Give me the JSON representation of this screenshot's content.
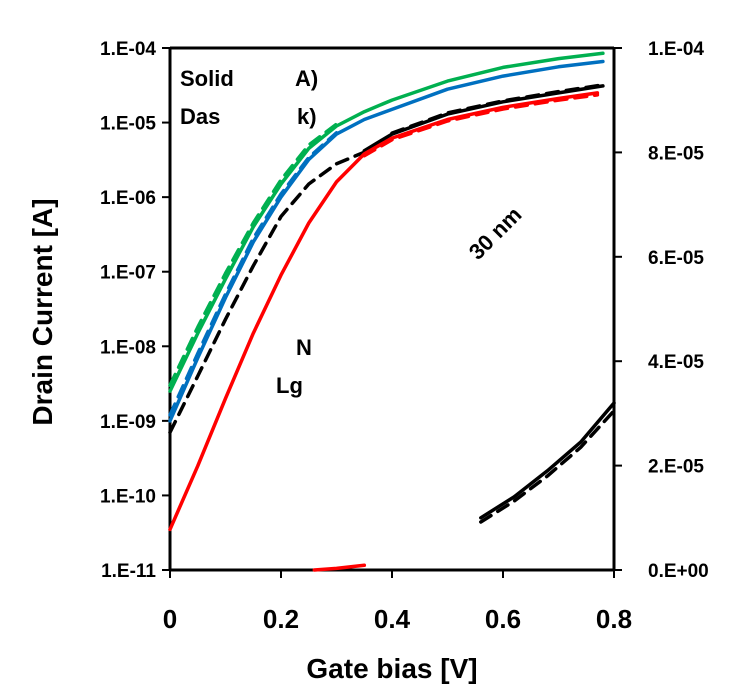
{
  "chart_data": {
    "type": "line",
    "title": "",
    "xlabel": "Gate bias [V]",
    "ylabel": "Drain Current [A]",
    "xlim": [
      0,
      0.8
    ],
    "ylim_left_log": [
      1e-11,
      0.0001
    ],
    "ylim_right": [
      0,
      0.0001
    ],
    "x_ticks": [
      "0",
      "0.2",
      "0.4",
      "0.6",
      "0.8"
    ],
    "y_ticks_left": [
      "1.E-11",
      "1.E-10",
      "1.E-09",
      "1.E-08",
      "1.E-07",
      "1.E-06",
      "1.E-05",
      "1.E-04"
    ],
    "y_ticks_right": [
      "0.E+00",
      "2.E-05",
      "4.E-05",
      "6.E-05",
      "8.E-05",
      "1.E-04"
    ],
    "grid": false,
    "annotations": {
      "solid": "Solid",
      "dash": "Das",
      "solid_tail": "A)",
      "dash_tail": "k)",
      "nw": "N",
      "lg": "Lg",
      "len30": "30 nm"
    },
    "series": [
      {
        "color": "#00b050",
        "style": "solid",
        "axis": "left-log",
        "x": [
          0,
          0.05,
          0.1,
          0.15,
          0.2,
          0.25,
          0.3,
          0.35,
          0.4,
          0.5,
          0.6,
          0.7,
          0.78
        ],
        "y": [
          2.5e-09,
          1.5e-08,
          8e-08,
          4e-07,
          1.5e-06,
          4.5e-06,
          9e-06,
          1.4e-05,
          2e-05,
          3.6e-05,
          5.5e-05,
          7.2e-05,
          8.5e-05
        ]
      },
      {
        "color": "#00b050",
        "style": "dash",
        "axis": "left-log",
        "x": [
          0,
          0.05,
          0.1,
          0.15,
          0.2,
          0.25,
          0.3
        ],
        "y": [
          3e-09,
          1.8e-08,
          9.5e-08,
          4.5e-07,
          1.7e-06,
          5e-06,
          9.5e-06
        ]
      },
      {
        "color": "#0070c0",
        "style": "solid",
        "axis": "left-log",
        "x": [
          0,
          0.05,
          0.1,
          0.15,
          0.2,
          0.25,
          0.3,
          0.35,
          0.4,
          0.5,
          0.6,
          0.7,
          0.78
        ],
        "y": [
          1e-09,
          7e-09,
          4.5e-08,
          2.5e-07,
          1e-06,
          3.2e-06,
          7e-06,
          1.1e-05,
          1.5e-05,
          2.8e-05,
          4.2e-05,
          5.6e-05,
          6.6e-05
        ]
      },
      {
        "color": "#0070c0",
        "style": "dash",
        "axis": "left-log",
        "x": [
          0,
          0.05,
          0.1,
          0.15,
          0.2,
          0.25,
          0.3
        ],
        "y": [
          1.2e-09,
          8e-09,
          5e-08,
          2.8e-07,
          1.1e-06,
          3.4e-06,
          7.3e-06
        ]
      },
      {
        "color": "#000000",
        "style": "dash",
        "axis": "left-log",
        "x": [
          0,
          0.05,
          0.1,
          0.15,
          0.2,
          0.25,
          0.3,
          0.35
        ],
        "y": [
          7e-10,
          4e-09,
          2.3e-08,
          1.2e-07,
          5.5e-07,
          1.5e-06,
          2.8e-06,
          4e-06
        ]
      },
      {
        "color": "#000000",
        "style": "solid",
        "axis": "left-log",
        "x": [
          0.35,
          0.4,
          0.5,
          0.6,
          0.7,
          0.78
        ],
        "y": [
          4.2e-06,
          7e-06,
          1.3e-05,
          1.9e-05,
          2.5e-05,
          3.1e-05
        ]
      },
      {
        "color": "#000000",
        "style": "dash",
        "axis": "left-log",
        "x": [
          0.4,
          0.5,
          0.6,
          0.7,
          0.78
        ],
        "y": [
          7.2e-06,
          1.35e-05,
          1.95e-05,
          2.6e-05,
          3.2e-05
        ]
      },
      {
        "color": "#ff0000",
        "style": "solid",
        "axis": "left-log",
        "x": [
          0,
          0.05,
          0.1,
          0.15,
          0.2,
          0.25,
          0.3,
          0.35,
          0.4,
          0.5,
          0.6,
          0.7,
          0.77
        ],
        "y": [
          3.5e-11,
          2.5e-10,
          2e-09,
          1.5e-08,
          9e-08,
          4.5e-07,
          1.6e-06,
          3.8e-06,
          6.2e-06,
          1.1e-05,
          1.6e-05,
          2.1e-05,
          2.5e-05
        ]
      },
      {
        "color": "#ff0000",
        "style": "dash",
        "axis": "left-log",
        "x": [
          0.35,
          0.4,
          0.5,
          0.6,
          0.7,
          0.77
        ],
        "y": [
          3.6e-06,
          5.9e-06,
          1.05e-05,
          1.52e-05,
          2e-05,
          2.35e-05
        ]
      },
      {
        "color": "#000000",
        "style": "solid",
        "axis": "right-linear",
        "x": [
          0.56,
          0.62,
          0.68,
          0.74,
          0.8
        ],
        "y": [
          1e-05,
          1.4e-05,
          1.9e-05,
          2.45e-05,
          3.2e-05
        ]
      },
      {
        "color": "#000000",
        "style": "dash",
        "axis": "right-linear",
        "x": [
          0.56,
          0.62,
          0.68,
          0.74,
          0.8
        ],
        "y": [
          9.2e-06,
          1.32e-05,
          1.8e-05,
          2.35e-05,
          3.05e-05
        ]
      },
      {
        "color": "#ff0000",
        "style": "solid",
        "axis": "right-linear",
        "x": [
          0.26,
          0.3,
          0.35
        ],
        "y": [
          0,
          3e-07,
          9e-07
        ]
      }
    ]
  }
}
